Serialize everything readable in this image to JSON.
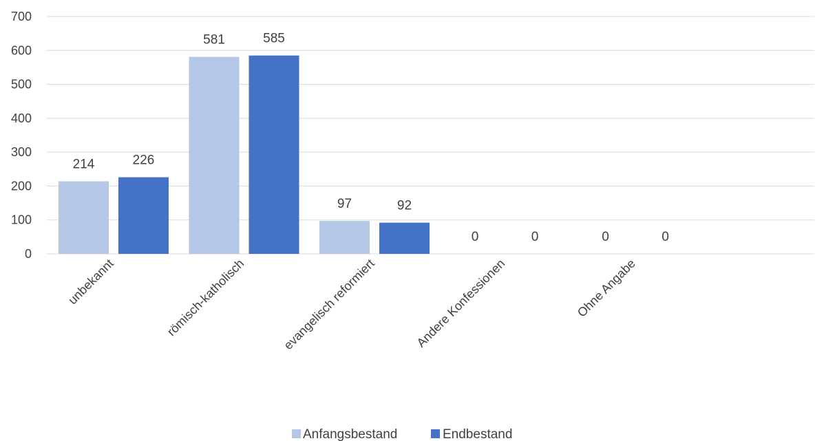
{
  "chart_data": {
    "type": "bar",
    "categories": [
      "unbekannt",
      "römisch-katholisch",
      "evangelisch reformiert",
      "Andere Konfessionen",
      "Ohne Angabe"
    ],
    "series": [
      {
        "name": "Anfangsbestand",
        "values": [
          214,
          581,
          97,
          0,
          0
        ],
        "color": "#b4c7e7"
      },
      {
        "name": "Endbestand",
        "values": [
          226,
          585,
          92,
          0,
          0
        ],
        "color": "#4472c4"
      }
    ],
    "ylim": [
      0,
      700
    ],
    "yticks": [
      0,
      100,
      200,
      300,
      400,
      500,
      600,
      700
    ],
    "grid": true,
    "data_labels": true,
    "legend_position": "bottom"
  }
}
